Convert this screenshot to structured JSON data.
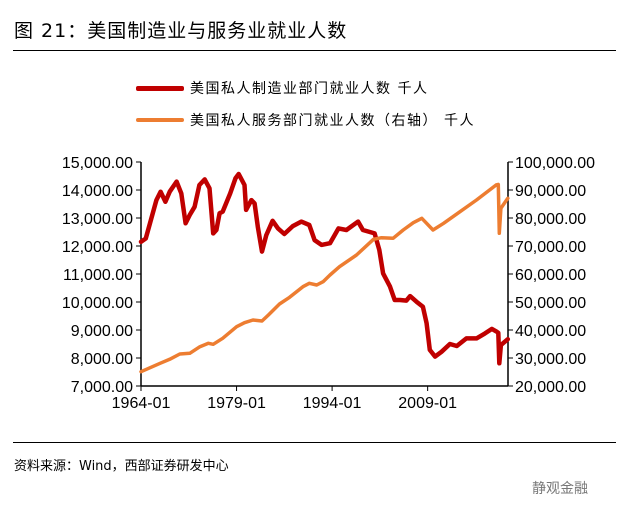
{
  "title": "图 21：美国制造业与服务业就业人数",
  "source": "资料来源：Wind，西部证券研发中心",
  "watermark": "静观金融",
  "chart_data": {
    "type": "line",
    "title": "",
    "x_tick_labels": [
      "1964-01",
      "1979-01",
      "1994-01",
      "2009-01"
    ],
    "x_range": [
      "1964-01",
      "2021-08"
    ],
    "y_left": {
      "range": [
        7000,
        15000
      ],
      "ticks": [
        "7,000.00",
        "8,000.00",
        "9,000.00",
        "10,000.00",
        "11,000.00",
        "12,000.00",
        "13,000.00",
        "14,000.00",
        "15,000.00"
      ]
    },
    "y_right": {
      "range": [
        20000,
        100000
      ],
      "ticks": [
        "20,000.00",
        "30,000.00",
        "40,000.00",
        "50,000.00",
        "60,000.00",
        "70,000.00",
        "80,000.00",
        "90,000.00",
        "100,000.00"
      ]
    },
    "grid": false,
    "legend_placement": "top",
    "series": [
      {
        "name": "美国私人制造业部门就业人数 千人",
        "axis": "left",
        "color": "#C00000",
        "points": [
          [
            "1964-01",
            12150
          ],
          [
            "1964-10",
            12270
          ],
          [
            "1966-06",
            13640
          ],
          [
            "1967-02",
            13940
          ],
          [
            "1967-11",
            13580
          ],
          [
            "1968-07",
            13940
          ],
          [
            "1969-08",
            14300
          ],
          [
            "1970-05",
            13880
          ],
          [
            "1971-01",
            12810
          ],
          [
            "1971-09",
            13110
          ],
          [
            "1972-06",
            13400
          ],
          [
            "1973-03",
            14180
          ],
          [
            "1974-01",
            14380
          ],
          [
            "1974-10",
            14060
          ],
          [
            "1975-05",
            12450
          ],
          [
            "1975-11",
            12570
          ],
          [
            "1976-05",
            13170
          ],
          [
            "1976-11",
            13230
          ],
          [
            "1978-01",
            13880
          ],
          [
            "1978-11",
            14420
          ],
          [
            "1979-05",
            14570
          ],
          [
            "1980-04",
            14180
          ],
          [
            "1980-07",
            13290
          ],
          [
            "1981-05",
            13640
          ],
          [
            "1981-11",
            13520
          ],
          [
            "1982-05",
            12690
          ],
          [
            "1983-01",
            11800
          ],
          [
            "1983-09",
            12390
          ],
          [
            "1984-09",
            12900
          ],
          [
            "1985-07",
            12630
          ],
          [
            "1986-07",
            12430
          ],
          [
            "1987-11",
            12710
          ],
          [
            "1989-03",
            12870
          ],
          [
            "1990-06",
            12750
          ],
          [
            "1991-04",
            12210
          ],
          [
            "1992-05",
            12040
          ],
          [
            "1993-09",
            12100
          ],
          [
            "1995-01",
            12630
          ],
          [
            "1996-04",
            12570
          ],
          [
            "1998-02",
            12870
          ],
          [
            "1998-11",
            12570
          ],
          [
            "2000-09",
            12450
          ],
          [
            "2001-06",
            11860
          ],
          [
            "2002-01",
            11020
          ],
          [
            "2003-02",
            10550
          ],
          [
            "2003-11",
            10070
          ],
          [
            "2004-09",
            10070
          ],
          [
            "2005-09",
            10050
          ],
          [
            "2006-04",
            10210
          ],
          [
            "2007-04",
            10010
          ],
          [
            "2008-04",
            9830
          ],
          [
            "2008-11",
            9240
          ],
          [
            "2009-05",
            8290
          ],
          [
            "2010-03",
            8050
          ],
          [
            "2011-03",
            8220
          ],
          [
            "2012-07",
            8500
          ],
          [
            "2013-08",
            8430
          ],
          [
            "2015-02",
            8700
          ],
          [
            "2016-09",
            8700
          ],
          [
            "2018-01",
            8880
          ],
          [
            "2019-02",
            9040
          ],
          [
            "2019-11",
            8940
          ],
          [
            "2020-02",
            8900
          ],
          [
            "2020-04",
            7810
          ],
          [
            "2020-07",
            8460
          ],
          [
            "2021-08",
            8670
          ]
        ]
      },
      {
        "name": "美国私人服务部门就业人数（右轴） 千人",
        "axis": "right",
        "color": "#ED7D31",
        "points": [
          [
            "1964-01",
            25110
          ],
          [
            "1967-01",
            28110
          ],
          [
            "1968-07",
            29540
          ],
          [
            "1970-02",
            31430
          ],
          [
            "1971-09",
            31680
          ],
          [
            "1973-04",
            34040
          ],
          [
            "1974-08",
            35250
          ],
          [
            "1975-05",
            34890
          ],
          [
            "1976-11",
            37040
          ],
          [
            "1979-01",
            41180
          ],
          [
            "1980-04",
            42610
          ],
          [
            "1981-08",
            43570
          ],
          [
            "1983-01",
            43210
          ],
          [
            "1984-01",
            45360
          ],
          [
            "1985-10",
            49290
          ],
          [
            "1987-05",
            51680
          ],
          [
            "1989-06",
            55460
          ],
          [
            "1990-06",
            56670
          ],
          [
            "1991-08",
            56070
          ],
          [
            "1992-08",
            57250
          ],
          [
            "1993-09",
            59640
          ],
          [
            "1995-03",
            62610
          ],
          [
            "1997-11",
            66790
          ],
          [
            "2000-07",
            72390
          ],
          [
            "2001-10",
            72970
          ],
          [
            "2003-08",
            72740
          ],
          [
            "2005-03",
            75710
          ],
          [
            "2006-10",
            78330
          ],
          [
            "2008-02",
            79890
          ],
          [
            "2008-11",
            78100
          ],
          [
            "2009-11",
            75710
          ],
          [
            "2011-07",
            78100
          ],
          [
            "2014-02",
            82260
          ],
          [
            "2016-09",
            86430
          ],
          [
            "2019-10",
            91790
          ],
          [
            "2020-02",
            92000
          ],
          [
            "2020-04",
            74520
          ],
          [
            "2020-07",
            83450
          ],
          [
            "2021-08",
            87020
          ]
        ]
      }
    ]
  }
}
